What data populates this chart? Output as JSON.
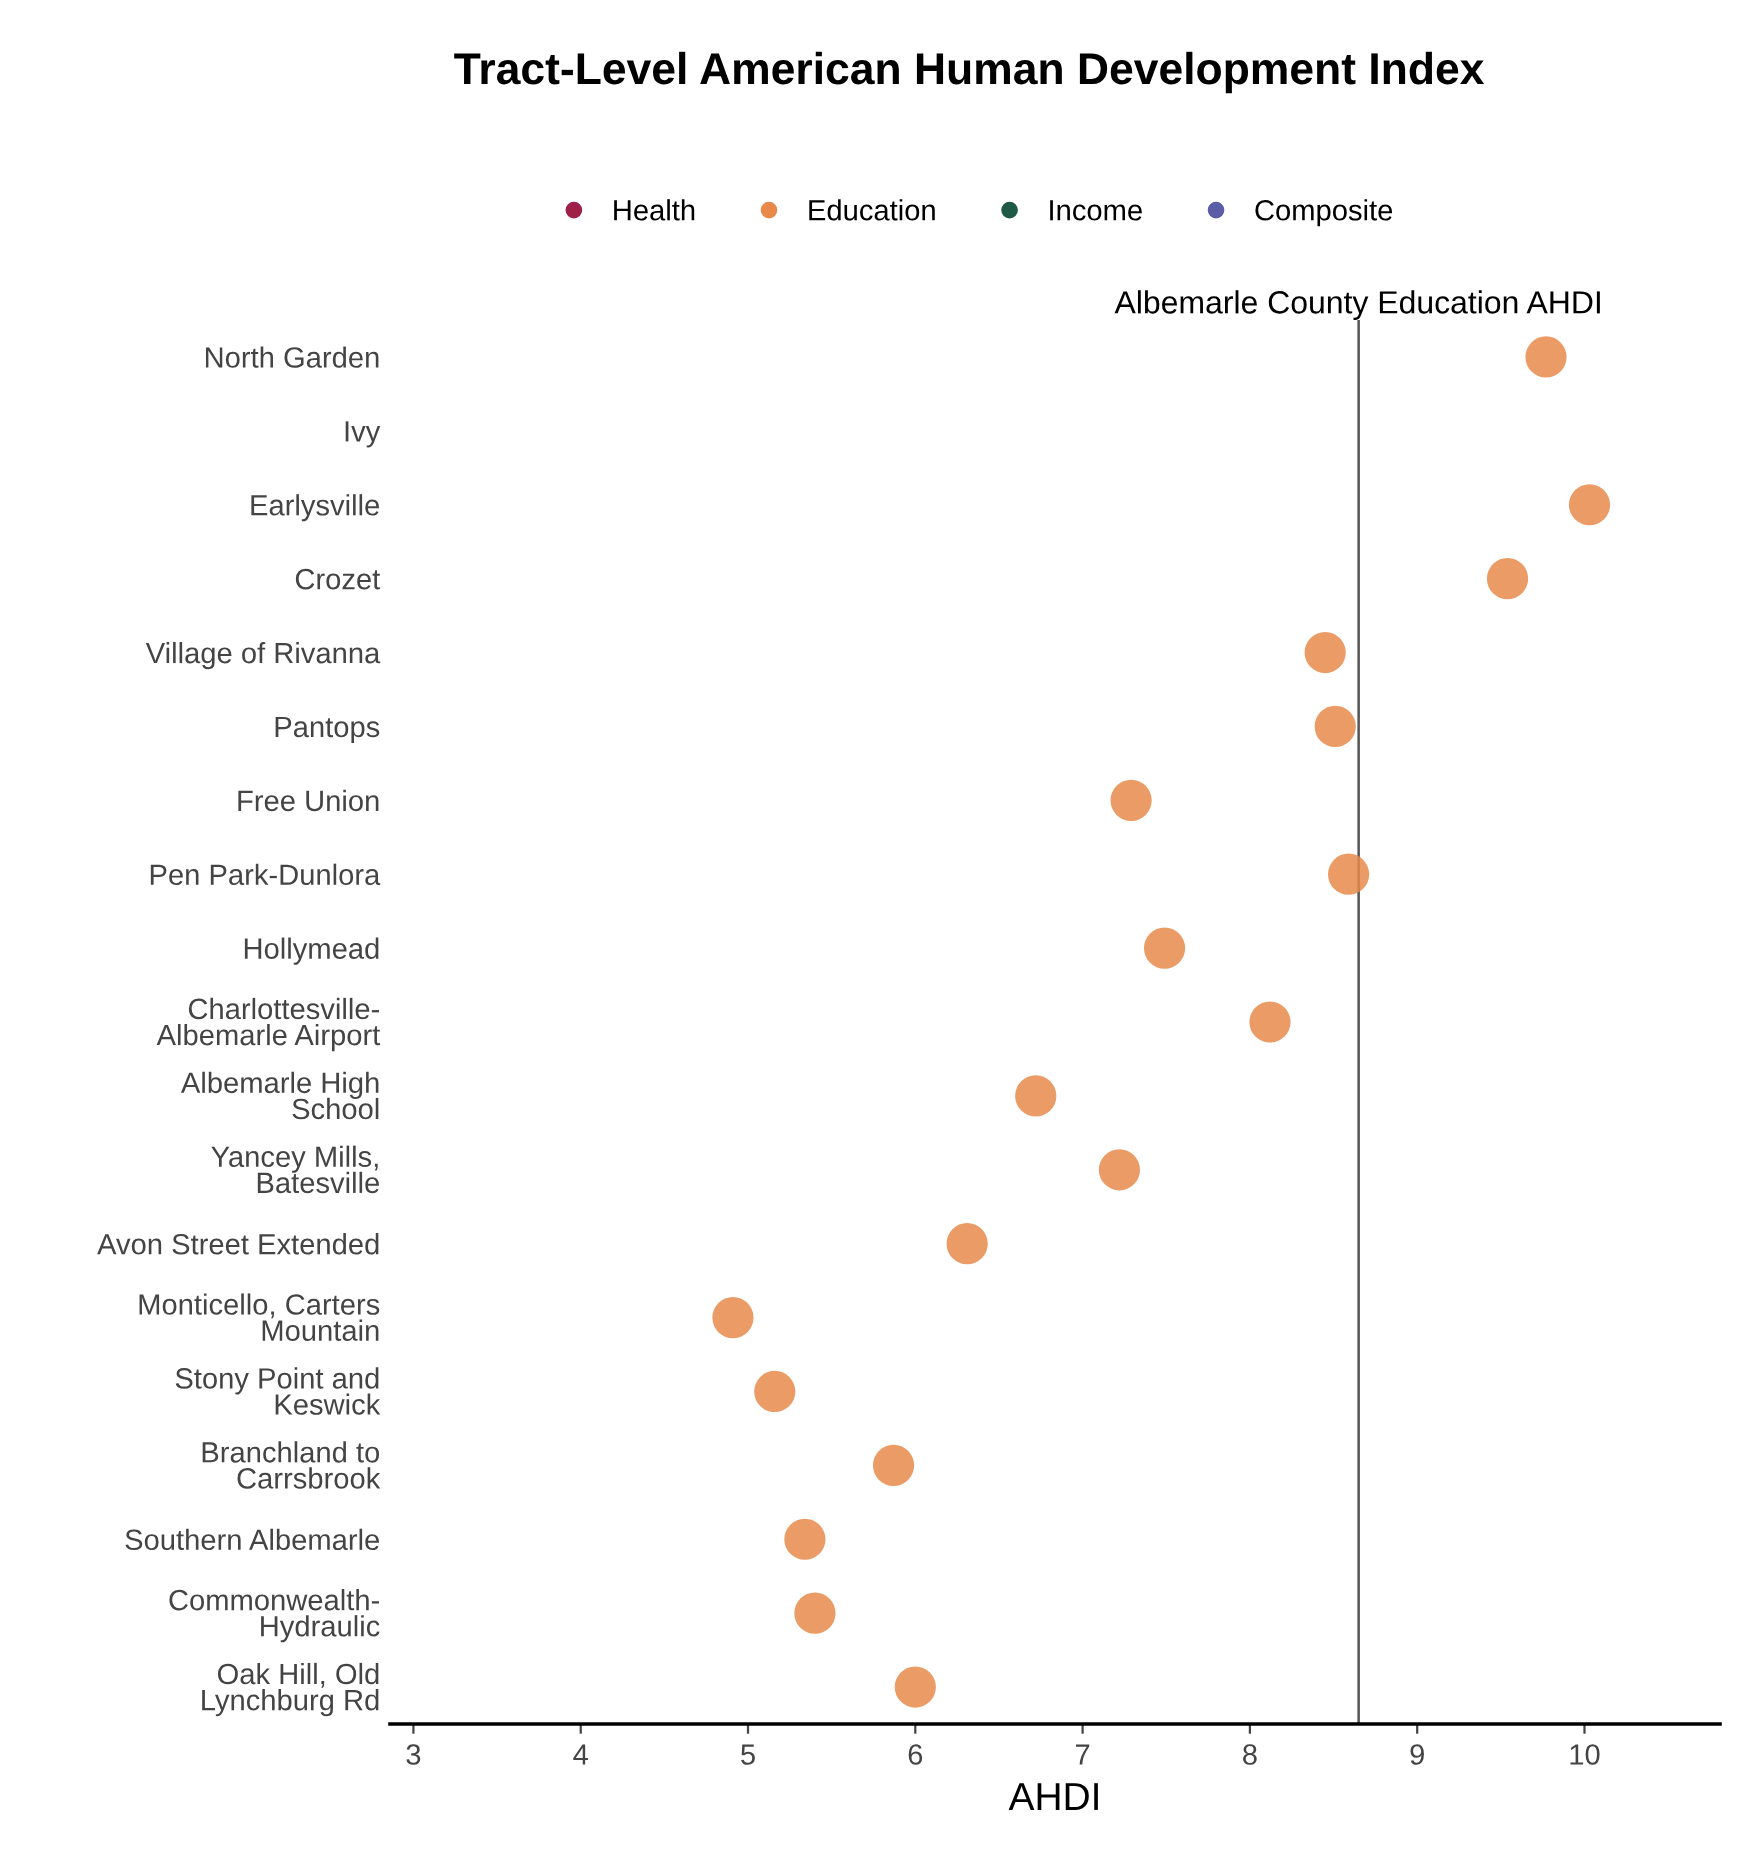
{
  "chart_data": {
    "type": "scatter",
    "title": "Tract-Level American Human Development Index",
    "xlabel": "AHDI",
    "orientation": "horizontal",
    "categories": [
      "North Garden",
      "Ivy",
      "Earlysville",
      "Crozet",
      "Village of Rivanna",
      "Pantops",
      "Free Union",
      "Pen Park-Dunlora",
      "Hollymead",
      "Charlottesville-\nAlbemarle Airport",
      "Albemarle High\nSchool",
      "Yancey Mills,\nBatesville",
      "Avon Street Extended",
      "Monticello, Carters\nMountain",
      "Stony Point and\nKeswick",
      "Branchland to\nCarrsbrook",
      "Southern Albemarle",
      "Commonwealth-\nHydraulic",
      "Oak Hill, Old\nLynchburg Rd"
    ],
    "series": [
      {
        "name": "Health",
        "color": "#9e1f48",
        "values": [
          null,
          null,
          null,
          null,
          null,
          null,
          null,
          null,
          null,
          null,
          null,
          null,
          null,
          null,
          null,
          null,
          null,
          null,
          null
        ]
      },
      {
        "name": "Education",
        "color": "#e8894a",
        "values": [
          9.77,
          null,
          10.03,
          9.54,
          8.45,
          8.51,
          7.29,
          8.59,
          7.49,
          8.12,
          6.72,
          7.22,
          6.31,
          4.91,
          5.16,
          5.87,
          5.34,
          5.4,
          6.0
        ]
      },
      {
        "name": "Income",
        "color": "#1e5a45",
        "values": [
          null,
          null,
          null,
          null,
          null,
          null,
          null,
          null,
          null,
          null,
          null,
          null,
          null,
          null,
          null,
          null,
          null,
          null,
          null
        ]
      },
      {
        "name": "Composite",
        "color": "#5b5ea6",
        "values": [
          null,
          null,
          null,
          null,
          null,
          null,
          null,
          null,
          null,
          null,
          null,
          null,
          null,
          null,
          null,
          null,
          null,
          null,
          null
        ]
      }
    ],
    "xlim": [
      2.86,
      10.81
    ],
    "xticks": [
      3,
      4,
      5,
      6,
      7,
      8,
      9,
      10
    ],
    "ref_lines": [
      {
        "axis": "x",
        "value": 8.65,
        "label": "Albemarle County Education AHDI",
        "color": "#555555"
      }
    ],
    "marker": "circle",
    "legend": "top",
    "grid": false
  }
}
